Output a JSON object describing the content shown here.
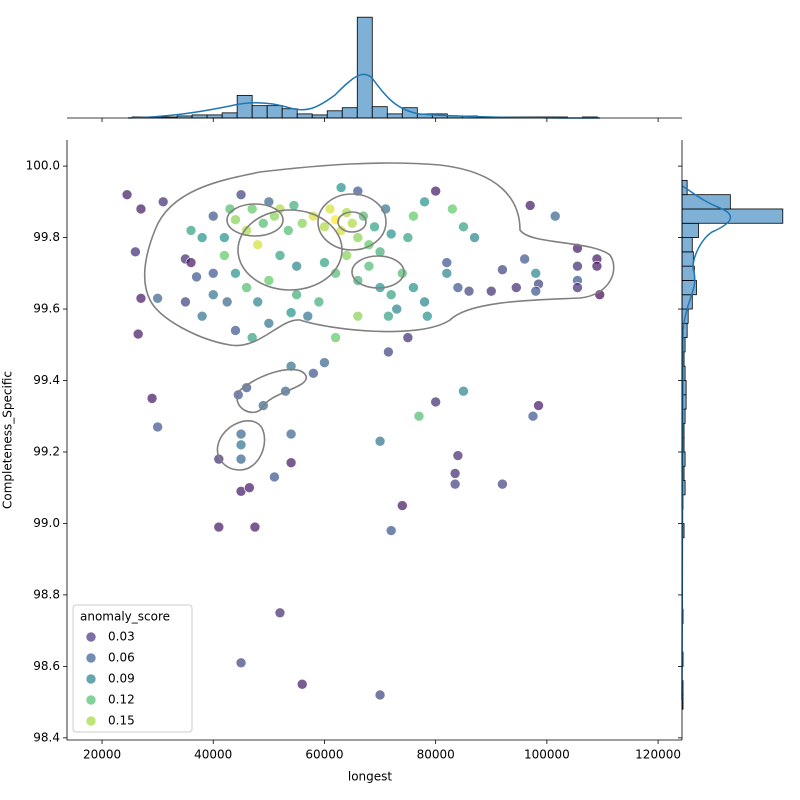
{
  "chart_data": {
    "type": "jointplot",
    "x_label": "longest",
    "y_label": "Completeness_Specific",
    "legend_title": "anomaly_score",
    "xlim": [
      13700,
      124300
    ],
    "xticks": [
      20000,
      40000,
      60000,
      80000,
      100000,
      120000
    ],
    "ylim": [
      98.394,
      100.073
    ],
    "yticks": [
      98.4,
      98.6,
      98.8,
      {
        "value": 99,
        "label": "99.0"
      },
      99.2,
      99.4,
      99.6,
      99.8,
      {
        "value": 100,
        "label": "100.0"
      }
    ],
    "colormap": "viridis",
    "legend": [
      {
        "label": 0.03,
        "color": "#46337e"
      },
      {
        "label": 0.06,
        "color": "#365c8d"
      },
      {
        "label": 0.09,
        "color": "#277f8e"
      },
      {
        "label": 0.12,
        "color": "#4ac16d"
      },
      {
        "label": 0.15,
        "color": "#a0da39"
      }
    ],
    "x": [
      24500,
      26000,
      27000,
      26500,
      27000,
      29000,
      30000,
      30000,
      31000,
      35000,
      36000,
      41000,
      41000,
      45000,
      45000,
      46500,
      47500,
      52000,
      54000,
      56000,
      70000,
      72000,
      74000,
      80000,
      83500,
      83500,
      84000,
      85000,
      92000,
      97500,
      98500,
      44500,
      46000,
      45000,
      45000,
      45000,
      49000,
      51000,
      53000,
      54000,
      54000,
      58000,
      60000,
      70000,
      77000,
      71500,
      75000,
      90000,
      94500,
      96000,
      97000,
      98000,
      98500,
      98000,
      101500,
      105500,
      105500,
      105500,
      105500,
      109000,
      109000,
      109500,
      92000,
      87000,
      85000,
      83000,
      80000,
      82000,
      82000,
      84000,
      86000,
      40000,
      42000,
      43000,
      44000,
      45000,
      46000,
      47000,
      48000,
      49000,
      50000,
      51000,
      52000,
      52000,
      53500,
      54500,
      55000,
      56000,
      44000,
      46000,
      48000,
      50000,
      42500,
      40000,
      38000,
      36000,
      37000,
      35000,
      38000,
      44000,
      47000,
      50000,
      54000,
      55000,
      58000,
      60000,
      61000,
      62000,
      63000,
      64000,
      65000,
      66000,
      67000,
      68000,
      69000,
      70000,
      71000,
      72000,
      60000,
      62000,
      64000,
      66000,
      68000,
      70000,
      72000,
      74000,
      73000,
      76000,
      78000,
      76000,
      78000,
      75000,
      63000,
      66000,
      59000,
      57000,
      62000,
      66000,
      71500,
      78500,
      42000,
      40000
    ],
    "y": [
      99.92,
      99.76,
      99.88,
      99.53,
      99.63,
      99.35,
      99.27,
      99.63,
      99.9,
      99.74,
      99.73,
      98.99,
      99.18,
      99.09,
      98.61,
      99.1,
      98.99,
      98.75,
      99.17,
      98.55,
      98.52,
      98.98,
      99.05,
      99.34,
      99.14,
      99.11,
      99.19,
      99.37,
      99.11,
      99.3,
      99.33,
      99.36,
      99.38,
      99.25,
      99.22,
      99.18,
      99.33,
      99.13,
      99.37,
      99.25,
      99.44,
      99.42,
      99.45,
      99.23,
      99.3,
      99.48,
      99.52,
      99.65,
      99.66,
      99.74,
      99.89,
      99.7,
      99.67,
      99.65,
      99.86,
      99.77,
      99.72,
      99.68,
      99.66,
      99.74,
      99.72,
      99.64,
      99.71,
      99.8,
      99.83,
      99.88,
      99.93,
      99.73,
      99.7,
      99.66,
      99.65,
      99.86,
      99.8,
      99.88,
      99.85,
      99.92,
      99.82,
      99.88,
      99.78,
      99.84,
      99.9,
      99.86,
      99.75,
      99.88,
      99.82,
      99.89,
      99.72,
      99.84,
      99.7,
      99.66,
      99.62,
      99.68,
      99.62,
      99.7,
      99.8,
      99.82,
      99.69,
      99.62,
      99.58,
      99.54,
      99.52,
      99.56,
      99.59,
      99.64,
      99.86,
      99.83,
      99.88,
      99.85,
      99.82,
      99.87,
      99.84,
      99.8,
      99.86,
      99.78,
      99.83,
      99.76,
      99.88,
      99.81,
      99.73,
      99.7,
      99.75,
      99.68,
      99.72,
      99.66,
      99.64,
      99.7,
      99.6,
      99.66,
      99.62,
      99.86,
      99.9,
      99.8,
      99.94,
      99.93,
      99.62,
      99.58,
      99.52,
      99.58,
      99.58,
      99.58,
      99.75,
      99.64
    ],
    "hue": [
      0.02,
      0.03,
      0.02,
      0.02,
      0.02,
      0.02,
      0.05,
      0.06,
      0.03,
      0.03,
      0.02,
      0.02,
      0.03,
      0.02,
      0.04,
      0.02,
      0.02,
      0.03,
      0.02,
      0.02,
      0.04,
      0.05,
      0.02,
      0.03,
      0.03,
      0.04,
      0.03,
      0.08,
      0.04,
      0.05,
      0.02,
      0.05,
      0.05,
      0.06,
      0.07,
      0.06,
      0.06,
      0.05,
      0.06,
      0.06,
      0.07,
      0.05,
      0.06,
      0.07,
      0.12,
      0.04,
      0.03,
      0.03,
      0.03,
      0.05,
      0.02,
      0.08,
      0.04,
      0.05,
      0.06,
      0.02,
      0.03,
      0.05,
      0.03,
      0.02,
      0.02,
      0.01,
      0.04,
      0.08,
      0.1,
      0.13,
      0.02,
      0.05,
      0.08,
      0.05,
      0.04,
      0.05,
      0.09,
      0.12,
      0.14,
      0.04,
      0.15,
      0.13,
      0.16,
      0.12,
      0.06,
      0.14,
      0.1,
      0.15,
      0.12,
      0.11,
      0.08,
      0.14,
      0.09,
      0.12,
      0.08,
      0.13,
      0.06,
      0.05,
      0.09,
      0.1,
      0.05,
      0.04,
      0.07,
      0.05,
      0.1,
      0.07,
      0.09,
      0.11,
      0.16,
      0.15,
      0.16,
      0.17,
      0.16,
      0.15,
      0.15,
      0.14,
      0.12,
      0.13,
      0.1,
      0.11,
      0.07,
      0.09,
      0.1,
      0.12,
      0.14,
      0.11,
      0.12,
      0.09,
      0.1,
      0.12,
      0.08,
      0.09,
      0.08,
      0.13,
      0.09,
      0.1,
      0.09,
      0.05,
      0.11,
      0.07,
      0.13,
      0.14,
      0.1,
      0.09,
      0.13,
      0.07
    ],
    "x_hist": {
      "color": "#7fb0d5",
      "ylim": [
        0,
        105
      ],
      "bins": [
        25400,
        28100,
        30800,
        33500,
        36200,
        38900,
        41600,
        44300,
        47000,
        49700,
        52400,
        55100,
        57800,
        60500,
        63200,
        65900,
        68600,
        71300,
        74000,
        76700,
        79400,
        82100,
        84800,
        87500,
        90200,
        92900,
        95600,
        98300,
        101000,
        103700,
        106400,
        109100
      ],
      "counts": [
        1,
        1,
        1,
        2,
        3,
        3,
        5,
        22,
        12,
        12,
        9,
        4,
        3,
        7,
        10,
        98,
        11,
        4,
        10,
        4,
        4,
        2,
        2,
        1,
        1,
        1,
        1,
        1,
        1,
        0,
        1
      ]
    },
    "y_hist": {
      "color": "#7fb0d5",
      "xlim": [
        0,
        105
      ],
      "bins": [
        98.48,
        98.52,
        98.56,
        98.6,
        98.64,
        98.68,
        98.72,
        98.76,
        98.8,
        98.84,
        98.88,
        98.92,
        98.96,
        99.0,
        99.04,
        99.08,
        99.12,
        99.16,
        99.2,
        99.24,
        99.28,
        99.32,
        99.36,
        99.4,
        99.44,
        99.48,
        99.52,
        99.56,
        99.6,
        99.64,
        99.68,
        99.72,
        99.76,
        99.8,
        99.84,
        99.88,
        99.92,
        99.96
      ],
      "counts": [
        1,
        1,
        0,
        1,
        0,
        0,
        1,
        0,
        0,
        0,
        0,
        0,
        2,
        0,
        1,
        3,
        2,
        3,
        2,
        2,
        3,
        4,
        4,
        3,
        2,
        3,
        5,
        6,
        10,
        14,
        12,
        11,
        10,
        16,
        98,
        47,
        5
      ]
    }
  }
}
